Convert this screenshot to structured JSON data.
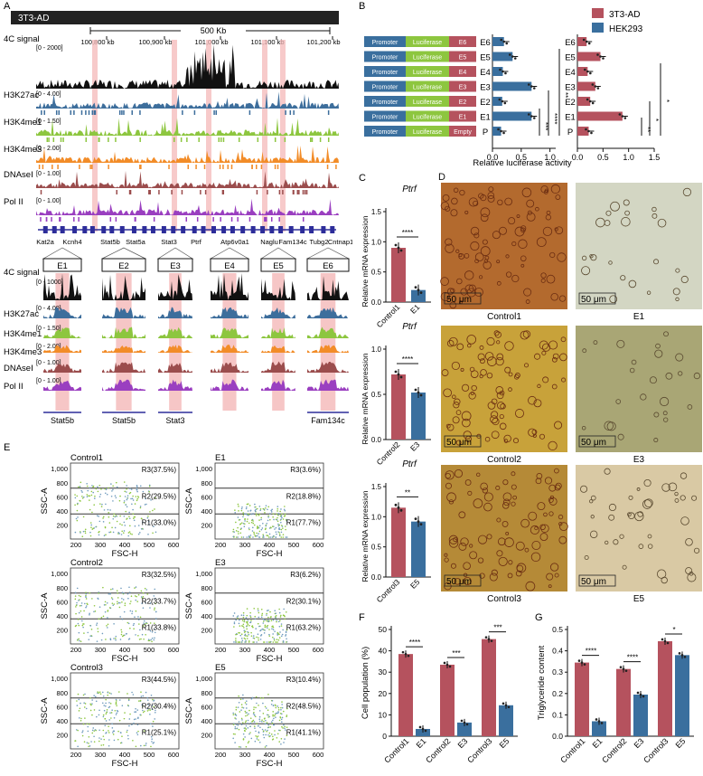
{
  "panel_letters": [
    "A",
    "B",
    "C",
    "D",
    "E",
    "F",
    "G"
  ],
  "colors": {
    "adipocyte": "#b5525e",
    "hek293": "#3a6f9e",
    "h3k27ac": "#3d6e9c",
    "h3k4me1": "#8dc63f",
    "h3k4me3": "#f28c28",
    "dnasei": "#9b4d4d",
    "pol2": "#9a3fc0",
    "highlight": "#f4b8b8",
    "promoter": "#3a6f9e",
    "luciferase": "#8dc63f",
    "enhancer": "#b5525e",
    "gene": "#2d2d9a"
  },
  "panelA": {
    "title": "3T3-AD",
    "scale_label": "500 Kb",
    "coord_ticks": [
      "100,800 kb",
      "100,900 kb",
      "101,000 kb",
      "101,100 kb",
      "101,200 kb"
    ],
    "tracks": [
      {
        "name": "4C signal",
        "range": "[0 - 2000]"
      },
      {
        "name": "H3K27ac",
        "range": "[0 - 4.00]"
      },
      {
        "name": "H3K4me1",
        "range": "[0 - 1.50]"
      },
      {
        "name": "H3K4me3",
        "range": "[0 - 2.00]"
      },
      {
        "name": "DNAseI",
        "range": "[0 - 1.00]"
      },
      {
        "name": "Pol II",
        "range": "[0 - 1.00]"
      }
    ],
    "genes": [
      "Kat2a",
      "Kcnh4",
      "Stat5b",
      "Stat5a",
      "Stat3",
      "Ptrf",
      "Atp6v0a1",
      "Naglu",
      "Fam134c",
      "Tubg2",
      "Cntnap1"
    ],
    "zoom_tracks": [
      {
        "name": "4C signal",
        "range": "[0 - 1000]"
      },
      {
        "name": "H3K27ac",
        "range": "[0 - 4.00]"
      },
      {
        "name": "H3K4me1",
        "range": "[0 - 1.50]"
      },
      {
        "name": "H3K4me3",
        "range": "[0 - 2.00]"
      },
      {
        "name": "DNAseI",
        "range": "[0 - 1.00]"
      },
      {
        "name": "Pol II",
        "range": "[0 - 1.00]"
      }
    ],
    "enhancers": [
      "E1",
      "E2",
      "E3",
      "E4",
      "E5",
      "E6"
    ],
    "enhancer_genes": [
      "Stat5b",
      "Stat5b",
      "Stat3",
      "",
      "",
      "Fam134c"
    ]
  },
  "panelB": {
    "legend": [
      "3T3-AD",
      "HEK293"
    ],
    "construct_promoter": "Promoter",
    "construct_luciferase": "Luciferase",
    "rows": [
      "E6",
      "E5",
      "E4",
      "E3",
      "E2",
      "E1",
      "P"
    ],
    "construct_ends": [
      "E6",
      "E5",
      "E4",
      "E3",
      "E2",
      "E1",
      "Empty"
    ],
    "xlabel": "Relative luciferase activity",
    "hek_ticks": [
      "0.0",
      "0.5",
      "1.0"
    ],
    "ad_ticks": [
      "0.0",
      "0.5",
      "1.0",
      "1.5"
    ],
    "hek_sig": [
      "**",
      "****",
      "***"
    ],
    "ad_sig": [
      "*",
      "*",
      "**"
    ]
  },
  "panelC": {
    "gene": "Ptrf",
    "ylabel": "Relative mRNA expression",
    "ticks": [
      "0.0",
      "0.5",
      "1.0",
      "1.5"
    ],
    "groups": [
      {
        "control": "Control1",
        "treat": "E1",
        "sig": "****"
      },
      {
        "control": "Control2",
        "treat": "E3",
        "sig": "****"
      },
      {
        "control": "Control3",
        "treat": "E5",
        "sig": "**"
      }
    ]
  },
  "panelD": {
    "scale": "50 μm",
    "images": [
      [
        "Control1",
        "E1"
      ],
      [
        "Control2",
        "E3"
      ],
      [
        "Control3",
        "E5"
      ]
    ]
  },
  "panelE": {
    "xlabel": "FSC-H",
    "ylabel": "SSC-A",
    "yticks": [
      "200",
      "400",
      "600",
      "800",
      "1,000"
    ],
    "xticks": [
      "200",
      "300",
      "400",
      "500",
      "600"
    ],
    "plots": [
      {
        "title": "Control1",
        "r3": "R3(37.5%)",
        "r2": "R2(29.5%)",
        "r1": "R1(33.0%)"
      },
      {
        "title": "E1",
        "r3": "R3(3.6%)",
        "r2": "R2(18.8%)",
        "r1": "R1(77.7%)"
      },
      {
        "title": "Control2",
        "r3": "R3(32.5%)",
        "r2": "R2(33.7%)",
        "r1": "R1(33.8%)"
      },
      {
        "title": "E3",
        "r3": "R3(6.2%)",
        "r2": "R2(30.1%)",
        "r1": "R1(63.2%)"
      },
      {
        "title": "Control3",
        "r3": "R3(44.5%)",
        "r2": "R2(30.4%)",
        "r1": "R1(25.1%)"
      },
      {
        "title": "E5",
        "r3": "R3(10.4%)",
        "r2": "R2(48.5%)",
        "r1": "R1(41.1%)"
      }
    ]
  },
  "panelF": {
    "ylabel": "Cell population (%)",
    "yticks": [
      "0",
      "10",
      "20",
      "30",
      "40",
      "50"
    ],
    "sig": [
      "****",
      "***",
      "***"
    ]
  },
  "panelG": {
    "ylabel": "Triglyceride content",
    "yticks": [
      "0.0",
      "0.1",
      "0.2",
      "0.3",
      "0.4",
      "0.5"
    ],
    "sig": [
      "****",
      "****",
      "*"
    ]
  },
  "chart_data": [
    {
      "type": "bar",
      "title": "",
      "ylabel": "Relative mRNA expression",
      "categories": [
        "Control1",
        "E1"
      ],
      "values": [
        0.9,
        0.2
      ],
      "ylim": [
        0,
        1.5
      ]
    },
    {
      "type": "bar",
      "title": "",
      "ylabel": "Relative mRNA expression",
      "categories": [
        "Control2",
        "E3"
      ],
      "values": [
        0.72,
        0.52
      ],
      "ylim": [
        0,
        1.0
      ]
    },
    {
      "type": "bar",
      "title": "",
      "ylabel": "Relative mRNA expression",
      "categories": [
        "Control3",
        "E5"
      ],
      "values": [
        1.15,
        0.92
      ],
      "ylim": [
        0,
        1.5
      ]
    },
    {
      "type": "bar",
      "ylabel": "Cell population (%)",
      "categories": [
        "Control1",
        "E1",
        "Control2",
        "E3",
        "Control3",
        "E5"
      ],
      "values": [
        38.5,
        3.4,
        33.5,
        6.4,
        45.5,
        14.5
      ],
      "ylim": [
        0,
        50
      ]
    },
    {
      "type": "bar",
      "ylabel": "Triglyceride content",
      "categories": [
        "Control1",
        "E1",
        "Control2",
        "E3",
        "Control3",
        "E5"
      ],
      "values": [
        0.345,
        0.07,
        0.315,
        0.195,
        0.445,
        0.38
      ],
      "ylim": [
        0,
        0.5
      ]
    },
    {
      "type": "bar",
      "xlabel": "Relative luciferase activity",
      "categories": [
        "E6",
        "E5",
        "E4",
        "E3",
        "E2",
        "E1",
        "P"
      ],
      "series": [
        {
          "name": "HEK293",
          "values": [
            0.2,
            0.35,
            0.18,
            0.68,
            0.17,
            0.68,
            0.15
          ]
        },
        {
          "name": "3T3-AD",
          "values": [
            0.18,
            0.45,
            0.2,
            0.35,
            0.25,
            0.88,
            0.22
          ]
        }
      ],
      "xlim": [
        0,
        1.5
      ]
    }
  ]
}
